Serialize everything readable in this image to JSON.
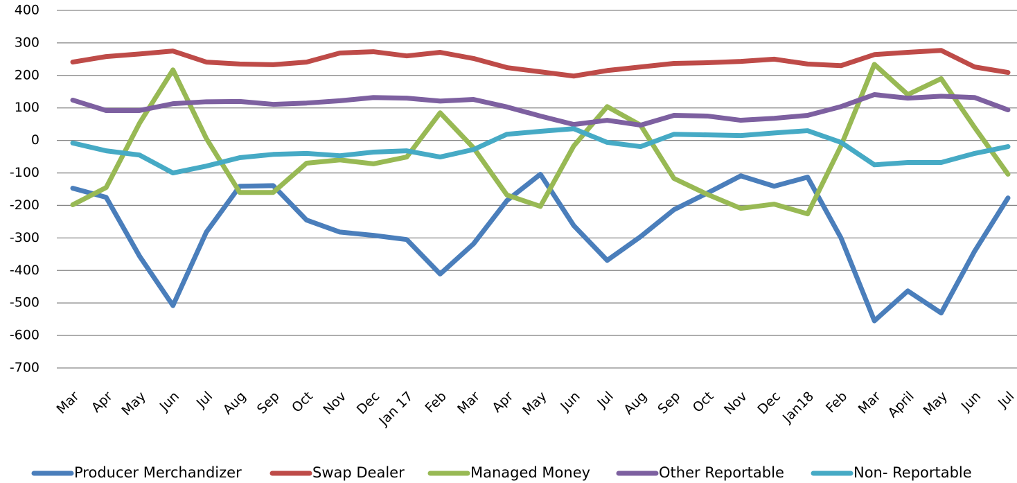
{
  "chart_data": {
    "type": "line",
    "categories": [
      "Mar",
      "Apr",
      "May",
      "Jun",
      "Jul",
      "Aug",
      "Sep",
      "Oct",
      "Nov",
      "Dec",
      "Jan 17",
      "Feb",
      "Mar",
      "Apr",
      "May",
      "Jun",
      "Jul",
      "Aug",
      "Sep",
      "Oct",
      "Nov",
      "Dec",
      "Jan18",
      "Feb",
      "Mar",
      "April",
      "May",
      "Jun",
      "Jul"
    ],
    "series": [
      {
        "name": "Producer Merchandizer",
        "color": "#4a7ebb",
        "values": [
          -147,
          -175,
          -356,
          -508,
          -282,
          -141,
          -139,
          -245,
          -282,
          -292,
          -305,
          -411,
          -318,
          -185,
          -104,
          -262,
          -369,
          -296,
          -213,
          -162,
          -109,
          -141,
          -113,
          -300,
          -555,
          -463,
          -531,
          -341,
          -177
        ]
      },
      {
        "name": "Swap Dealer",
        "color": "#be4b48",
        "values": [
          241,
          258,
          266,
          275,
          241,
          235,
          233,
          241,
          269,
          273,
          260,
          271,
          252,
          224,
          211,
          198,
          215,
          226,
          237,
          239,
          243,
          250,
          235,
          230,
          264,
          271,
          277,
          226,
          209
        ]
      },
      {
        "name": "Managed Money",
        "color": "#98b954",
        "values": [
          -198,
          -145,
          53,
          217,
          6,
          -160,
          -160,
          -70,
          -60,
          -72,
          -51,
          85,
          -23,
          -168,
          -203,
          -17,
          104,
          47,
          -117,
          -166,
          -209,
          -196,
          -226,
          -17,
          234,
          141,
          190,
          40,
          -104
        ]
      },
      {
        "name": "Other Reportable",
        "color": "#7d60a0",
        "values": [
          124,
          92,
          92,
          113,
          119,
          120,
          111,
          115,
          122,
          132,
          130,
          121,
          126,
          103,
          75,
          49,
          62,
          47,
          77,
          75,
          62,
          68,
          77,
          104,
          141,
          130,
          136,
          132,
          94
        ]
      },
      {
        "name": "Non- Reportable",
        "color": "#46aac5",
        "values": [
          -8,
          -32,
          -45,
          -100,
          -79,
          -53,
          -43,
          -40,
          -47,
          -36,
          -32,
          -51,
          -28,
          19,
          28,
          36,
          -6,
          -19,
          19,
          17,
          15,
          23,
          30,
          -6,
          -75,
          -68,
          -68,
          -40,
          -19
        ]
      }
    ],
    "ylim": [
      -700,
      400
    ],
    "yticks": [
      -700,
      -600,
      -500,
      -400,
      -300,
      -200,
      -100,
      0,
      100,
      200,
      300,
      400
    ],
    "grid": true,
    "legend": "bottom"
  }
}
